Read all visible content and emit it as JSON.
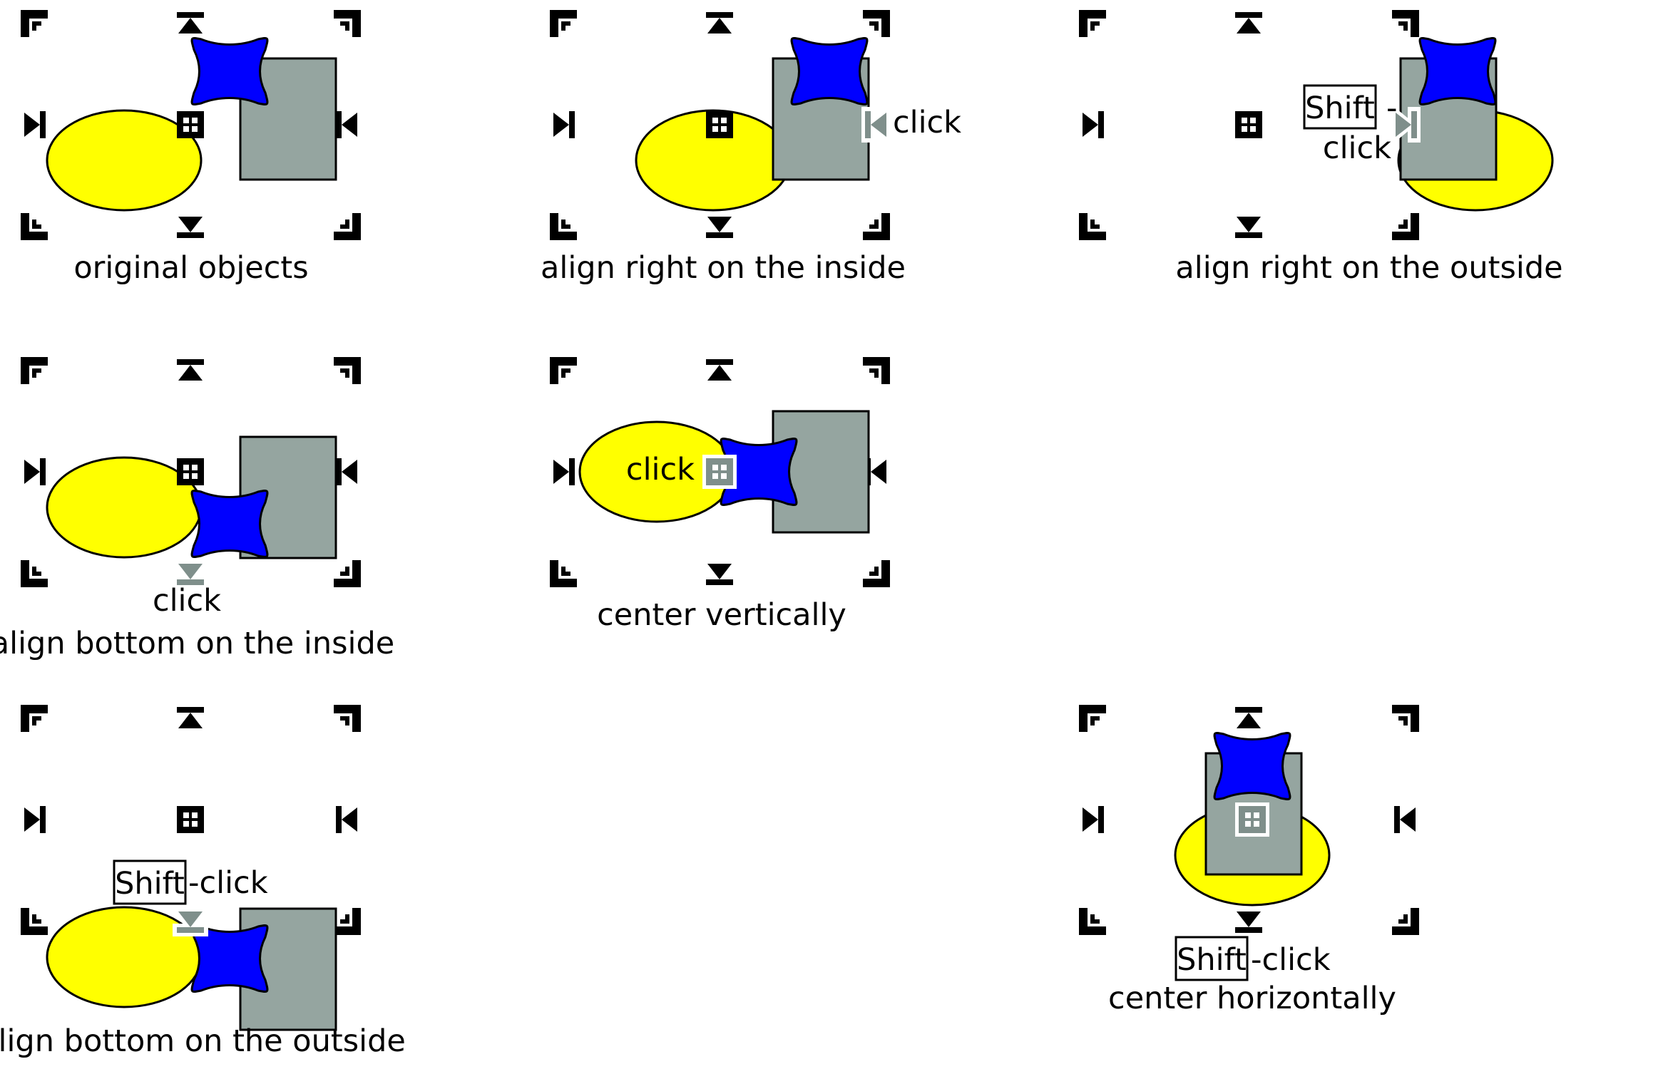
{
  "colors": {
    "ellipse": "#ffff00",
    "star": "#0000ff",
    "rect": "#95a5a0",
    "handle": "#000000",
    "handle_active": "#7f8f8b",
    "outline": "#000000",
    "background": "#ffffff"
  },
  "icons": {
    "corner_handle": "corner-handle-icon",
    "edge_handle": "edge-arrow-handle-icon",
    "center_handle": "center-grid-handle-icon"
  },
  "panels": [
    {
      "id": "original",
      "caption": "original objects"
    },
    {
      "id": "right_inside",
      "caption": "align right on the inside",
      "hint": "click"
    },
    {
      "id": "right_outside",
      "caption": "align right on the outside",
      "key": "Shift",
      "hint_dash": "-",
      "hint_click": "click"
    },
    {
      "id": "bottom_inside",
      "caption": "align bottom on the inside",
      "hint": "click"
    },
    {
      "id": "center_vertical",
      "caption": "center vertically",
      "hint": "click"
    },
    {
      "id": "bottom_outside",
      "caption": "align bottom on the outside",
      "key": "Shift",
      "hint": "-click"
    },
    {
      "id": "center_horizontal",
      "caption": "center horizontally",
      "key": "Shift",
      "hint": "-click"
    }
  ]
}
